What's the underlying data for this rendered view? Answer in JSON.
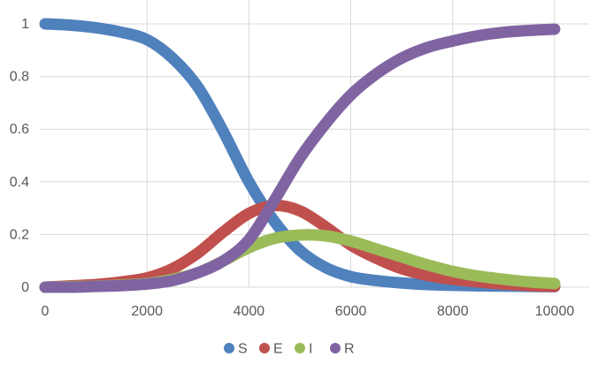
{
  "chart_data": {
    "type": "line",
    "title": "",
    "xlabel": "",
    "ylabel": "",
    "xlim": [
      0,
      10000
    ],
    "ylim": [
      0,
      1
    ],
    "x_ticks": [
      0,
      2000,
      4000,
      6000,
      8000,
      10000
    ],
    "y_ticks": [
      0,
      0.2,
      0.4,
      0.6,
      0.8,
      1
    ],
    "x_tick_labels": [
      "0",
      "2000",
      "4000",
      "6000",
      "8000",
      "10000"
    ],
    "y_tick_labels": [
      "0",
      "0.2",
      "0.4",
      "0.6",
      "0.8",
      "1"
    ],
    "grid": true,
    "legend_position": "bottom",
    "x": [
      0,
      500,
      1000,
      1500,
      2000,
      2500,
      3000,
      3500,
      4000,
      4500,
      5000,
      5500,
      6000,
      6500,
      7000,
      7500,
      8000,
      8500,
      9000,
      9500,
      10000
    ],
    "series": [
      {
        "name": "S",
        "color": "#4f81bd",
        "values": [
          1.0,
          0.995,
          0.985,
          0.968,
          0.94,
          0.87,
          0.76,
          0.59,
          0.4,
          0.25,
          0.14,
          0.075,
          0.04,
          0.025,
          0.016,
          0.01,
          0.007,
          0.005,
          0.004,
          0.003,
          0.002
        ]
      },
      {
        "name": "E",
        "color": "#c0504d",
        "values": [
          0.0,
          0.005,
          0.01,
          0.02,
          0.035,
          0.07,
          0.13,
          0.21,
          0.28,
          0.31,
          0.29,
          0.23,
          0.16,
          0.11,
          0.07,
          0.045,
          0.03,
          0.02,
          0.012,
          0.006,
          0.003
        ]
      },
      {
        "name": "I",
        "color": "#9bbb59",
        "values": [
          0.0,
          0.002,
          0.004,
          0.008,
          0.014,
          0.03,
          0.055,
          0.1,
          0.15,
          0.185,
          0.198,
          0.195,
          0.175,
          0.145,
          0.115,
          0.085,
          0.06,
          0.042,
          0.03,
          0.02,
          0.014
        ]
      },
      {
        "name": "R",
        "color": "#8064a2",
        "values": [
          0.0,
          0.0,
          0.003,
          0.006,
          0.012,
          0.025,
          0.055,
          0.1,
          0.18,
          0.33,
          0.49,
          0.62,
          0.73,
          0.81,
          0.87,
          0.91,
          0.935,
          0.955,
          0.968,
          0.975,
          0.98
        ]
      }
    ]
  }
}
